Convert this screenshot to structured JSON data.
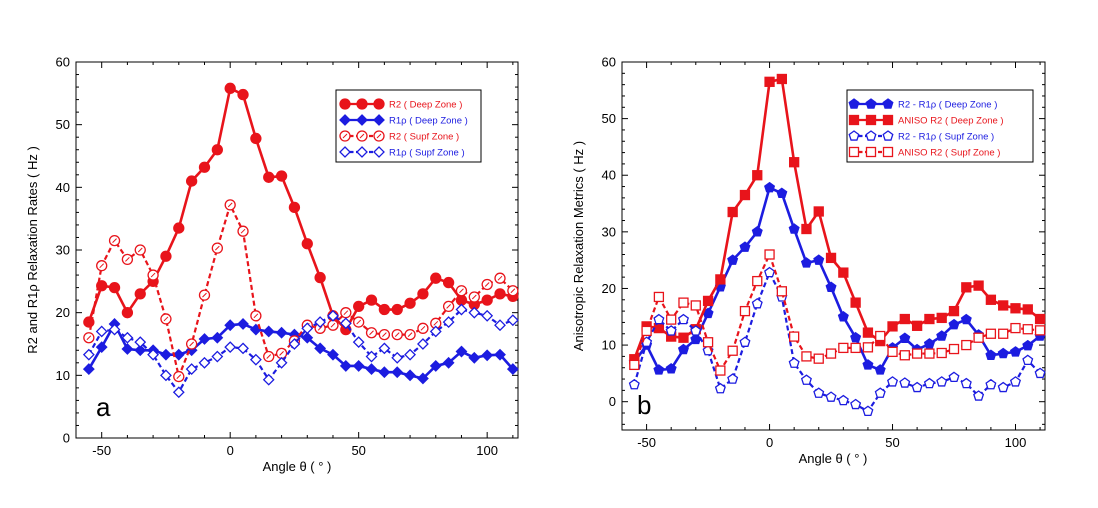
{
  "chart_data": [
    {
      "type": "line",
      "panel_label": "a",
      "xlabel": "Angle θ ( ° )",
      "ylabel": "R2 and R1ρ Relaxation Rates ( Hz )",
      "xlim": [
        -60,
        112
      ],
      "ylim": [
        0,
        60
      ],
      "xticks": [
        -50,
        0,
        50,
        100
      ],
      "yticks": [
        0,
        10,
        20,
        30,
        40,
        50,
        60
      ],
      "legend_position": "top-right",
      "series": [
        {
          "name": "R2 ( Deep Zone )",
          "color": "#e8141b",
          "dashed": false,
          "marker": "circle",
          "filled": true,
          "x": [
            -55,
            -50,
            -45,
            -40,
            -35,
            -30,
            -25,
            -20,
            -15,
            -10,
            -5,
            0,
            5,
            10,
            15,
            20,
            25,
            30,
            35,
            40,
            45,
            50,
            55,
            60,
            65,
            70,
            75,
            80,
            85,
            90,
            95,
            100,
            105,
            110
          ],
          "y": [
            18.5,
            24.3,
            24,
            20,
            23,
            25,
            29,
            33.5,
            41,
            43.2,
            46,
            55.8,
            54.8,
            47.8,
            41.6,
            41.8,
            36.8,
            31,
            25.6,
            19.5,
            17.3,
            21,
            22,
            20.5,
            20.5,
            21.5,
            23,
            25.5,
            24.8,
            22,
            21.3,
            22,
            23,
            22.6
          ]
        },
        {
          "name": "R1ρ ( Deep Zone )",
          "color": "#1c1ce0",
          "dashed": false,
          "marker": "diamond",
          "filled": true,
          "x": [
            -55,
            -50,
            -45,
            -40,
            -35,
            -30,
            -25,
            -20,
            -15,
            -10,
            -5,
            0,
            5,
            10,
            15,
            20,
            25,
            30,
            35,
            40,
            45,
            50,
            55,
            60,
            65,
            70,
            75,
            80,
            85,
            90,
            95,
            100,
            105,
            110
          ],
          "y": [
            11,
            14.5,
            18.2,
            14.2,
            14,
            14,
            13.3,
            13.3,
            14,
            15.8,
            16,
            18,
            18.2,
            17.3,
            17,
            16.8,
            16.5,
            16,
            14.3,
            13.3,
            11.5,
            11.5,
            11,
            10.5,
            10.5,
            10,
            9.5,
            11.5,
            12,
            13.8,
            12.8,
            13.2,
            13.3,
            11
          ]
        },
        {
          "name": "R2 ( Supf Zone )",
          "color": "#e8141b",
          "dashed": true,
          "marker": "circle",
          "filled": false,
          "x": [
            -55,
            -50,
            -45,
            -40,
            -35,
            -30,
            -25,
            -20,
            -15,
            -10,
            -5,
            0,
            5,
            10,
            15,
            20,
            25,
            30,
            35,
            40,
            45,
            50,
            55,
            60,
            65,
            70,
            75,
            80,
            85,
            90,
            95,
            100,
            105,
            110
          ],
          "y": [
            16,
            27.5,
            31.5,
            28.5,
            30,
            26,
            19,
            9.8,
            15,
            22.8,
            30.3,
            37.2,
            33,
            19.5,
            13,
            13.5,
            15.5,
            18,
            17.5,
            18,
            20,
            18.5,
            16.8,
            16.5,
            16.5,
            16.5,
            17.5,
            18.3,
            21,
            23.5,
            22.5,
            24.5,
            25.5,
            23.5
          ]
        },
        {
          "name": "R1ρ ( Supf Zone )",
          "color": "#1c1ce0",
          "dashed": true,
          "marker": "diamond",
          "filled": false,
          "x": [
            -55,
            -50,
            -45,
            -40,
            -35,
            -30,
            -25,
            -20,
            -15,
            -10,
            -5,
            0,
            5,
            10,
            15,
            20,
            25,
            30,
            35,
            40,
            45,
            50,
            55,
            60,
            65,
            70,
            75,
            80,
            85,
            90,
            95,
            100,
            105,
            110
          ],
          "y": [
            13.3,
            17,
            17.3,
            16,
            15.3,
            13.3,
            10,
            7.3,
            11,
            12,
            13,
            14.5,
            14.3,
            12.5,
            9.3,
            12,
            15,
            17.5,
            18.5,
            19.5,
            18.3,
            15.3,
            13,
            14.3,
            12.8,
            13.3,
            15,
            17,
            18.5,
            20.5,
            20,
            19.5,
            18,
            18.8
          ]
        }
      ]
    },
    {
      "type": "line",
      "panel_label": "b",
      "xlabel": "Angle θ ( ° )",
      "ylabel": "Anisotropic Relaxation Metrics ( Hz )",
      "xlim": [
        -60,
        112
      ],
      "ylim": [
        -5,
        60
      ],
      "xticks": [
        -50,
        0,
        50,
        100
      ],
      "yticks": [
        0,
        10,
        20,
        30,
        40,
        50,
        60
      ],
      "legend_position": "top-right",
      "series": [
        {
          "name": "R2 - R1ρ ( Deep Zone )",
          "color": "#1c1ce0",
          "dashed": false,
          "marker": "pentagon",
          "filled": true,
          "x": [
            -55,
            -50,
            -45,
            -40,
            -35,
            -30,
            -25,
            -20,
            -15,
            -10,
            -5,
            0,
            5,
            10,
            15,
            20,
            25,
            30,
            35,
            40,
            45,
            50,
            55,
            60,
            65,
            70,
            75,
            80,
            85,
            90,
            95,
            100,
            105,
            110
          ],
          "y": [
            7,
            10,
            5.6,
            5.8,
            9.2,
            11,
            15.6,
            20.3,
            25,
            27.3,
            30,
            37.8,
            36.8,
            30.5,
            24.5,
            25,
            20.2,
            15,
            11.3,
            6.5,
            5.6,
            9.5,
            11.2,
            9.2,
            10.2,
            11.6,
            13.6,
            14.5,
            11.8,
            8.2,
            8.5,
            8.8,
            9.9,
            11.6
          ]
        },
        {
          "name": "ANISO R2 ( Deep Zone )",
          "color": "#e8141b",
          "dashed": false,
          "marker": "square",
          "filled": true,
          "x": [
            -55,
            -50,
            -45,
            -40,
            -35,
            -30,
            -25,
            -20,
            -15,
            -10,
            -5,
            0,
            5,
            10,
            15,
            20,
            25,
            30,
            35,
            40,
            45,
            50,
            55,
            60,
            65,
            70,
            75,
            80,
            85,
            90,
            95,
            100,
            105,
            110
          ],
          "y": [
            7.5,
            13.3,
            13,
            11.5,
            11.3,
            12.8,
            17.8,
            21.6,
            33.5,
            36.5,
            40,
            56.5,
            57,
            42.3,
            30.5,
            33.6,
            25.4,
            22.8,
            17.5,
            12.2,
            10.7,
            13.3,
            14.6,
            13.4,
            14.6,
            14.8,
            16,
            20.2,
            20.5,
            18,
            17,
            16.5,
            16.3,
            14.6
          ]
        },
        {
          "name": "R2 - R1ρ ( Supf Zone )",
          "color": "#1c1ce0",
          "dashed": true,
          "marker": "pentagon",
          "filled": false,
          "x": [
            -55,
            -50,
            -45,
            -40,
            -35,
            -30,
            -25,
            -20,
            -15,
            -10,
            -5,
            0,
            5,
            10,
            15,
            20,
            25,
            30,
            35,
            40,
            45,
            50,
            55,
            60,
            65,
            70,
            75,
            80,
            85,
            90,
            95,
            100,
            105,
            110
          ],
          "y": [
            3,
            10.5,
            14.5,
            12.5,
            14.5,
            12.5,
            9,
            2.3,
            4,
            10.5,
            17.3,
            22.8,
            18.5,
            6.8,
            3.8,
            1.5,
            0.8,
            0.2,
            -0.5,
            -1.7,
            1.5,
            3.5,
            3.3,
            2.5,
            3.2,
            3.5,
            4.3,
            3.2,
            1,
            3,
            2.5,
            3.5,
            7.3,
            5
          ]
        },
        {
          "name": "ANISO R2 ( Supf Zone )",
          "color": "#e8141b",
          "dashed": true,
          "marker": "square",
          "filled": false,
          "x": [
            -55,
            -50,
            -45,
            -40,
            -35,
            -30,
            -25,
            -20,
            -15,
            -10,
            -5,
            0,
            5,
            10,
            15,
            20,
            25,
            30,
            35,
            40,
            45,
            50,
            55,
            60,
            65,
            70,
            75,
            80,
            85,
            90,
            95,
            100,
            105,
            110
          ],
          "y": [
            6.5,
            12.5,
            18.5,
            14.5,
            17.5,
            17,
            10.5,
            5.5,
            9,
            16,
            21.3,
            26,
            19.5,
            11.5,
            8,
            7.6,
            8.5,
            9.5,
            9.5,
            9.6,
            11.6,
            8.8,
            8.2,
            8.5,
            8.5,
            8.6,
            9.3,
            10,
            11.3,
            12,
            12,
            13,
            12.8,
            12.6
          ]
        }
      ]
    }
  ]
}
